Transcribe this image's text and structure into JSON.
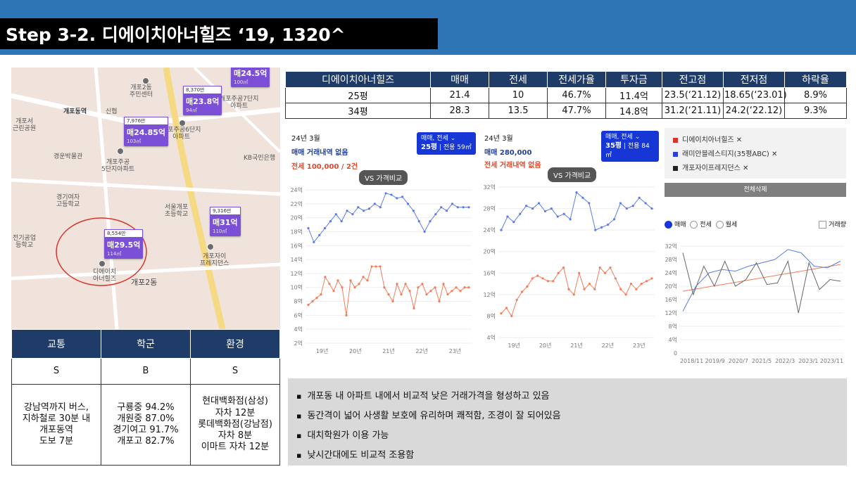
{
  "title": "Step 3-2. 디에이치아너힐즈 ‘19, 1320^",
  "map": {
    "labels": [
      "개포2동\n주민센터",
      "개포동역",
      "신협",
      "개포주공6단지\n아파트",
      "경운박물관",
      "개포주공\n5단지아파트",
      "KB국민은행",
      "경기여자\n고등학교",
      "서울개포\n초등학교",
      "전기공업\n등학교",
      "개포자이\n프레지던스",
      "디에이치\n아너힐즈",
      "개포2동",
      "개포주공7단지\n아파트",
      "개포서\n근린공원"
    ],
    "pins": [
      {
        "hdr": "7,976만",
        "val": "매24.85억",
        "sub": "103㎡"
      },
      {
        "hdr": "8,370만",
        "val": "매23.8억",
        "sub": "94㎡"
      },
      {
        "hdr": "",
        "val": "매24.5억",
        "sub": "100㎡"
      },
      {
        "hdr": "9,316만",
        "val": "매31억",
        "sub": "110㎡"
      },
      {
        "hdr": "8,554만",
        "val": "매29.5억",
        "sub": "114㎡"
      }
    ]
  },
  "price_table": {
    "headers": [
      "디에이치아너힐즈",
      "매매",
      "전세",
      "전세가율",
      "투자금",
      "전고점",
      "전저점",
      "하락율"
    ],
    "rows": [
      [
        "25평",
        "21.4",
        "10",
        "46.7%",
        "11.4억",
        "23.5(‘21.12)",
        "18.65(‘23.01)",
        "8.9%"
      ],
      [
        "34평",
        "28.3",
        "13.5",
        "47.7%",
        "14.8억",
        "31.2(‘21.11)",
        "24.2(‘22.12)",
        "9.3%"
      ]
    ]
  },
  "location_table": {
    "headers": [
      "교통",
      "학군",
      "환경"
    ],
    "grades": [
      "S",
      "B",
      "S"
    ],
    "details": [
      "강남역까지 버스,\n지하철로 30분 내\n개포동역\n도보 7분",
      "구룡중 94.2%\n개원중 87.0%\n경기여고 91.7%\n개포고 82.7%",
      "현대백화점(삼성)\n자차 12분\n롯데백화점(강남점)\n자차 8분\n이마트 자차 12분"
    ]
  },
  "chart1": {
    "date": "24년 3월",
    "line1": "매매 거래내역 없음",
    "line2": "전세 100,000 / 2건",
    "sel_top": "매매, 전세",
    "sel_bot_bold": "25평",
    "sel_bot": " | 전용 59㎡",
    "vs": "VS 가격비교"
  },
  "chart2": {
    "date": "24년 3월",
    "line1": "매매 280,000",
    "line2": "전세 거래내역 없음",
    "sel_top": "매매, 전세",
    "sel_bot_bold": "35평",
    "sel_bot": " | 전용 84㎡",
    "vs": "VS 가격비교"
  },
  "legend": {
    "items": [
      "디에이치아너힐즈 ✕",
      "래미안블레스티지(35평ABC) ✕",
      "개포자이프레지던스 ✕"
    ],
    "colors": [
      "#d9342b",
      "#2a3fd6",
      "#222222"
    ],
    "delete_all": "전체삭제",
    "radios": [
      "매매",
      "전세",
      "월세"
    ],
    "volume": "거래량"
  },
  "chart_data": [
    {
      "type": "line",
      "x_ticks": [
        "19년",
        "20년",
        "21년",
        "22년",
        "23년"
      ],
      "y_ticks": [
        "2억",
        "4억",
        "6억",
        "8억",
        "10억",
        "12억",
        "14억",
        "16억",
        "18억",
        "20억",
        "22억",
        "24억"
      ],
      "ylim": [
        2,
        24
      ],
      "series": [
        {
          "name": "매매",
          "color": "#5b7ce6",
          "values": [
            18.5,
            16.5,
            17.5,
            18.5,
            19.5,
            20.5,
            19.5,
            21,
            20.5,
            21.5,
            21,
            21.3,
            22,
            21.5,
            23.5,
            23.3,
            22.8,
            23,
            22,
            21,
            19.5,
            18,
            19.5,
            20.5,
            21.5,
            21,
            22,
            21.5,
            21.5,
            21.5
          ]
        },
        {
          "name": "전세",
          "color": "#f47c59",
          "values": [
            7.5,
            8,
            8.5,
            9,
            11.5,
            10.5,
            9.5,
            11,
            10,
            6,
            11,
            10,
            10.5,
            11.5,
            11,
            13,
            13,
            13,
            10,
            9,
            8,
            10.5,
            9,
            10.5,
            9.5,
            7,
            10,
            10.5,
            9,
            9.5,
            10,
            8,
            10.5,
            9,
            9.5,
            10,
            9.5,
            10,
            10
          ]
        }
      ]
    },
    {
      "type": "line",
      "x_ticks": [
        "19년",
        "20년",
        "21년",
        "22년",
        "23년"
      ],
      "y_ticks": [
        "4억",
        "8억",
        "12억",
        "16억",
        "20억",
        "24억",
        "28억",
        "32억"
      ],
      "ylim": [
        4,
        32
      ],
      "series": [
        {
          "name": "매매",
          "color": "#5b7ce6",
          "values": [
            24,
            26.5,
            25.5,
            27,
            28.5,
            28,
            29,
            27.5,
            28,
            26.5,
            27,
            26,
            31,
            30,
            29,
            24,
            24.5,
            25,
            26,
            29,
            28,
            28.5,
            30,
            29,
            28
          ]
        },
        {
          "name": "전세",
          "color": "#f47c59",
          "values": [
            8.5,
            9.5,
            8,
            11,
            12.5,
            13.5,
            15,
            15.5,
            15,
            14.5,
            14.5,
            16,
            17,
            13,
            12,
            16,
            13,
            14,
            13,
            17,
            16,
            17,
            15,
            13,
            12,
            14,
            13,
            14,
            14.5,
            15
          ]
        }
      ]
    },
    {
      "type": "line",
      "x_ticks": [
        "2018/11",
        "2019/9",
        "2020/7",
        "2021/5",
        "2022/3",
        "2023/1",
        "2023/11"
      ],
      "y_ticks": [
        "0",
        "4억",
        "8억",
        "12억",
        "16억",
        "20억",
        "24억",
        "28억",
        "32억"
      ],
      "ylim": [
        0,
        32
      ],
      "series": [
        {
          "name": "디에이치아너힐즈",
          "color": "#f47c59",
          "values": [
            18.5,
            22.5,
            26.5
          ]
        },
        {
          "name": "래미안블레스티지(35평ABC)",
          "color": "#5b7ce6",
          "values": [
            12.5,
            20,
            24,
            25,
            24.5,
            26,
            27,
            28,
            31,
            30,
            26,
            25.5,
            27.5
          ]
        },
        {
          "name": "개포자이프레지던스",
          "color": "#666666",
          "values": [
            30,
            17.5,
            26,
            20,
            27.5,
            20,
            22,
            27,
            20.5,
            21,
            27.5,
            12,
            27,
            19,
            22,
            21.5
          ]
        }
      ]
    }
  ],
  "notes": [
    "개포동 내  아파트 내에서 비교적 낮은 거래가격을 형성하고 있음",
    "동간격이 넓어 사생활 보호에 유리하며 쾌적함, 조경이 잘 되어있음",
    "대치학원가 이용 가능",
    "낮시간대에도 비교적 조용함"
  ]
}
